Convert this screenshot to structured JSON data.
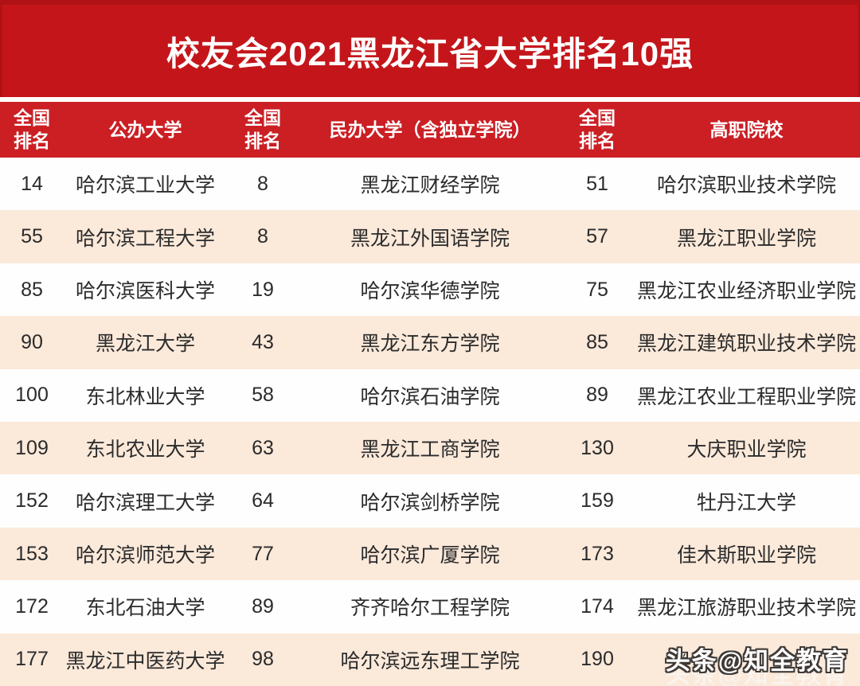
{
  "banner": {
    "title": "校友会2021黑龙江省大学排名10强"
  },
  "colors": {
    "banner_red": "#c4161a",
    "header_red": "#cb1f24",
    "row_white": "#fefefe",
    "row_peach": "#fbe9da",
    "header_text": "#ffffff",
    "body_text": "#2b2b2b"
  },
  "chart_data": {
    "type": "table",
    "title": "校友会2021黑龙江省大学排名10强",
    "columns": [
      {
        "label": "全国排名",
        "stacked": true
      },
      {
        "label": "公办大学",
        "stacked": false
      },
      {
        "label": "全国排名",
        "stacked": true
      },
      {
        "label": "民办大学（含独立学院）",
        "stacked": false
      },
      {
        "label": "全国排名",
        "stacked": true
      },
      {
        "label": "高职院校",
        "stacked": false
      }
    ],
    "rows": [
      [
        "14",
        "哈尔滨工业大学",
        "8",
        "黑龙江财经学院",
        "51",
        "哈尔滨职业技术学院"
      ],
      [
        "55",
        "哈尔滨工程大学",
        "8",
        "黑龙江外国语学院",
        "57",
        "黑龙江职业学院"
      ],
      [
        "85",
        "哈尔滨医科大学",
        "19",
        "哈尔滨华德学院",
        "75",
        "黑龙江农业经济职业学院"
      ],
      [
        "90",
        "黑龙江大学",
        "43",
        "黑龙江东方学院",
        "85",
        "黑龙江建筑职业技术学院"
      ],
      [
        "100",
        "东北林业大学",
        "58",
        "哈尔滨石油学院",
        "89",
        "黑龙江农业工程职业学院"
      ],
      [
        "109",
        "东北农业大学",
        "63",
        "黑龙江工商学院",
        "130",
        "大庆职业学院"
      ],
      [
        "152",
        "哈尔滨理工大学",
        "64",
        "哈尔滨剑桥学院",
        "159",
        "牡丹江大学"
      ],
      [
        "153",
        "哈尔滨师范大学",
        "77",
        "哈尔滨广厦学院",
        "173",
        "佳木斯职业学院"
      ],
      [
        "172",
        "东北石油大学",
        "89",
        "齐齐哈尔工程学院",
        "174",
        "黑龙江旅游职业技术学院"
      ],
      [
        "177",
        "黑龙江中医药大学",
        "98",
        "哈尔滨远东理工学院",
        "190",
        "黑"
      ]
    ],
    "notes": {
      "last_cell_partially_obscured_by_watermark": true
    }
  },
  "watermark": {
    "text": "头条@知全教育"
  }
}
